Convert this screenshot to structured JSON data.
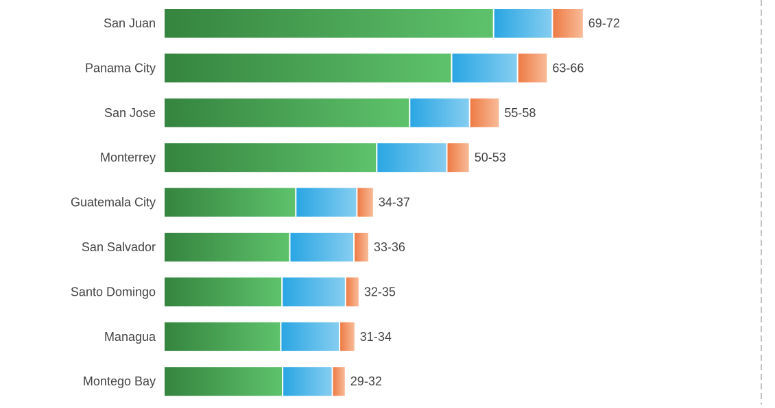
{
  "colors": {
    "green_dark": "#35843f",
    "green_light": "#5ec26b",
    "blue_dark": "#2aa6e3",
    "blue_light": "#85cdf0",
    "orange_dark": "#ee7b45",
    "orange_light": "#f8bb98",
    "label_text": "#444444",
    "divider": "#9a9a9a"
  },
  "chart_data": {
    "type": "bar",
    "orientation": "horizontal",
    "stacked": true,
    "title": "",
    "xlabel": "",
    "ylabel": "",
    "categories": [
      "San Juan",
      "Panama City",
      "San Jose",
      "Monterrey",
      "Guatemala City",
      "San Salvador",
      "Santo Domingo",
      "Managua",
      "Montego Bay"
    ],
    "series": [
      {
        "color_key": "green",
        "values": [
          55,
          48,
          41,
          35.5,
          22,
          21,
          19.7,
          19.5,
          19.8
        ]
      },
      {
        "color_key": "blue",
        "values": [
          9.8,
          11,
          10,
          11.7,
          10.2,
          10.7,
          10.6,
          9.8,
          8.3
        ]
      },
      {
        "color_key": "orange",
        "values": [
          5.2,
          5,
          5,
          3.8,
          2.8,
          2.5,
          2.3,
          2.6,
          2.2
        ]
      }
    ],
    "data_labels": [
      "69-72",
      "63-66",
      "55-58",
      "50-53",
      "34-37",
      "33-36",
      "32-35",
      "31-34",
      "29-32"
    ],
    "xlim": [
      0,
      72
    ],
    "grid": false,
    "legend": "none"
  }
}
